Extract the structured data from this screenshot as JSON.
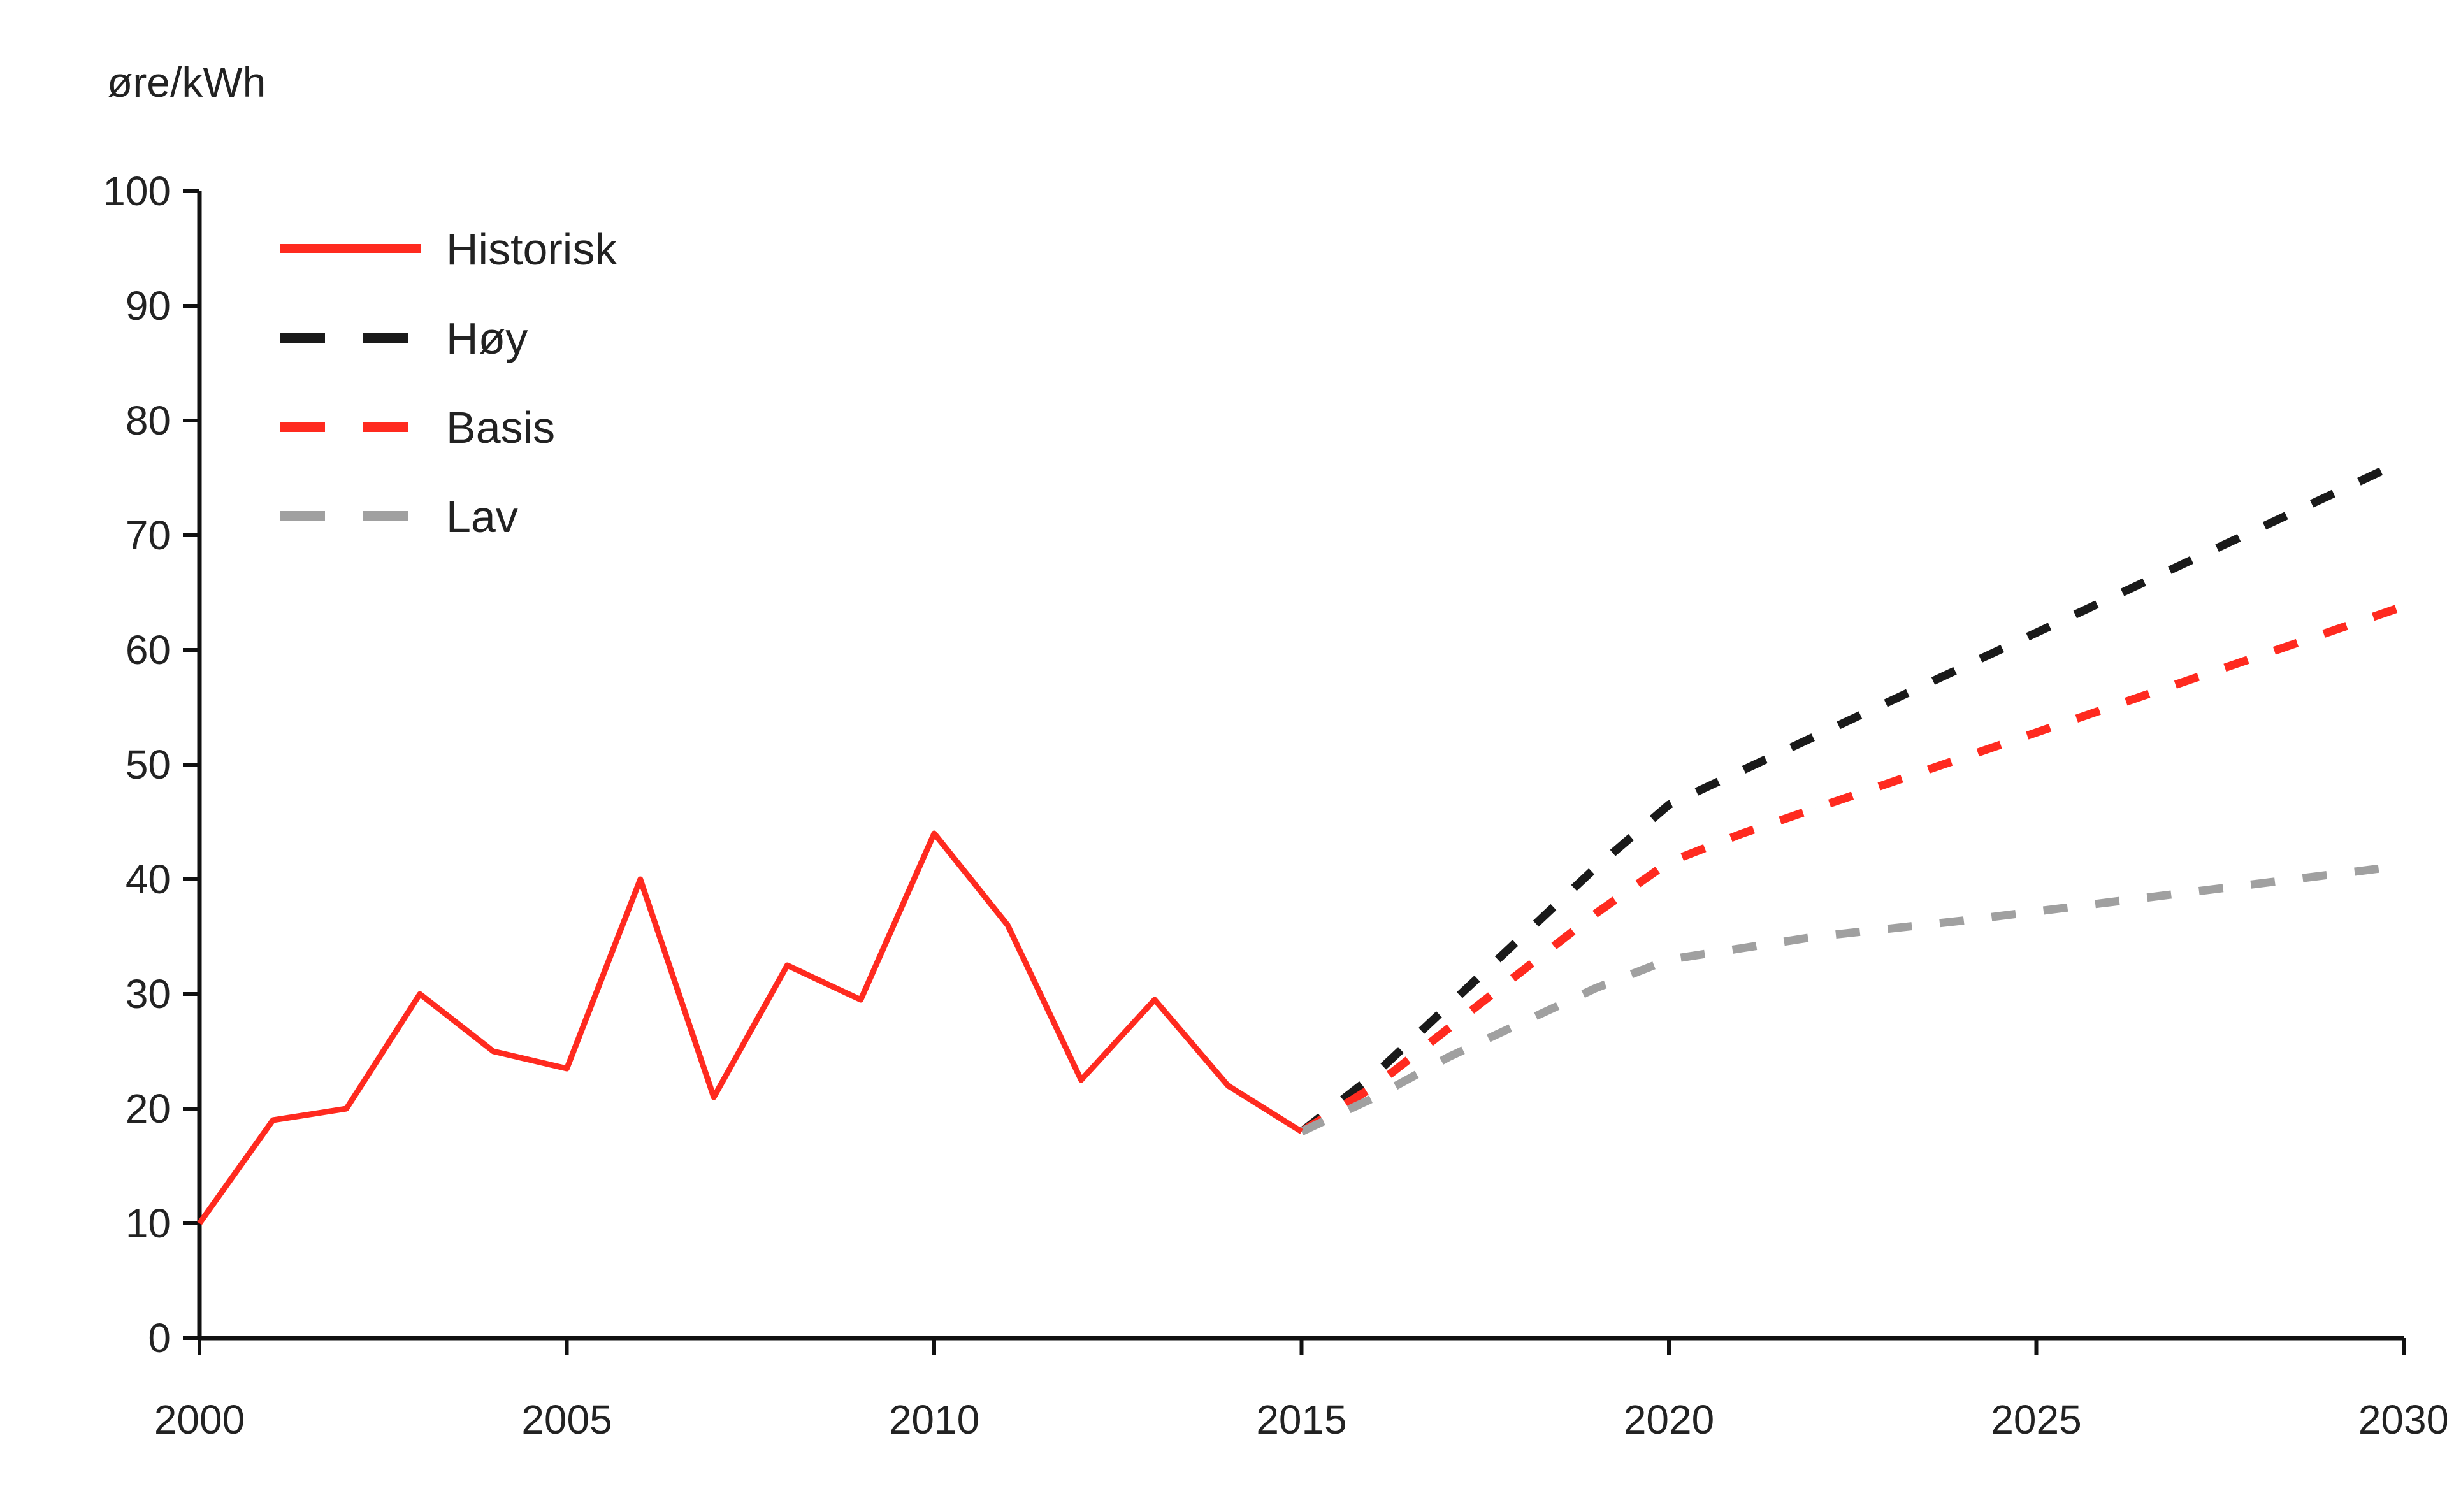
{
  "chart_data": {
    "type": "line",
    "unit_label": "øre/kWh",
    "xlim": [
      2000,
      2030
    ],
    "ylim": [
      0,
      100
    ],
    "x_ticks": [
      2000,
      2005,
      2010,
      2015,
      2020,
      2025,
      2030
    ],
    "y_ticks": [
      0,
      10,
      20,
      30,
      40,
      50,
      60,
      70,
      80,
      90,
      100
    ],
    "grid": false,
    "legend_position": "top-left",
    "series": [
      {
        "name": "Historisk",
        "style": "solid",
        "color": "#ff2a1f",
        "x": [
          2000,
          2001,
          2002,
          2003,
          2004,
          2005,
          2006,
          2007,
          2008,
          2009,
          2010,
          2011,
          2012,
          2013,
          2014,
          2015
        ],
        "y": [
          10,
          19,
          20,
          30,
          25,
          23.5,
          40,
          21,
          32.5,
          29.5,
          44,
          36,
          22.5,
          29.5,
          22,
          18
        ]
      },
      {
        "name": "Høy",
        "style": "dashed",
        "color": "#1a1a1a",
        "x": [
          2015,
          2016,
          2017,
          2018,
          2019,
          2020,
          2021,
          2022,
          2023,
          2024,
          2025,
          2026,
          2027,
          2028,
          2029,
          2030
        ],
        "y": [
          18,
          23,
          29,
          35,
          41,
          46.5,
          49.5,
          52.5,
          55.5,
          58.5,
          61.5,
          64.5,
          67.5,
          70.5,
          73.5,
          76.5
        ]
      },
      {
        "name": "Basis",
        "style": "dashed",
        "color": "#ff2a1f",
        "x": [
          2015,
          2016,
          2017,
          2018,
          2019,
          2020,
          2021,
          2022,
          2023,
          2024,
          2025,
          2026,
          2027,
          2028,
          2029,
          2030
        ],
        "y": [
          18,
          22,
          27,
          32,
          37,
          41.5,
          44,
          46.2,
          48.4,
          50.6,
          52.8,
          55,
          57.2,
          59.4,
          61.6,
          63.8
        ]
      },
      {
        "name": "Lav",
        "style": "dashed",
        "color": "#a0a0a0",
        "x": [
          2015,
          2016,
          2017,
          2018,
          2019,
          2020,
          2021,
          2022,
          2023,
          2024,
          2025,
          2026,
          2027,
          2028,
          2029,
          2030
        ],
        "y": [
          18,
          21,
          24.5,
          27.5,
          30.5,
          33,
          34,
          35,
          35.7,
          36.4,
          37.2,
          38,
          38.8,
          39.6,
          40.4,
          41.2
        ]
      }
    ]
  }
}
